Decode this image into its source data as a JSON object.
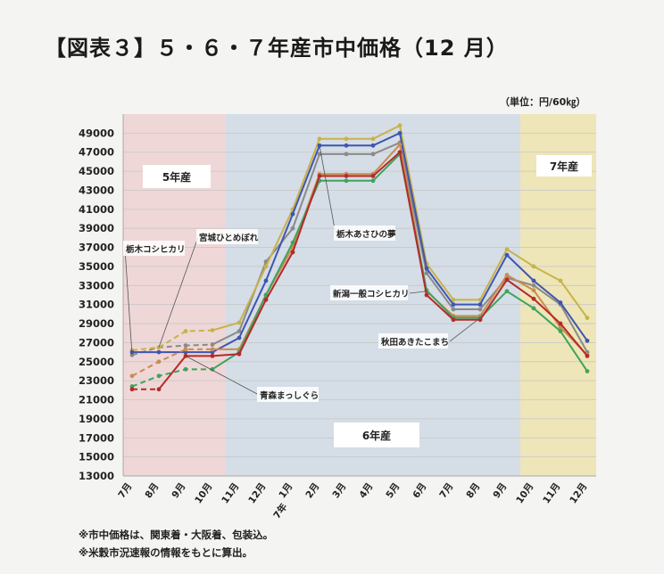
{
  "title": "【図表３】５・６・７年産市中価格（12 月）",
  "unit": "（単位：円/60㎏）",
  "notes": [
    "※市中価格は、関東着・大阪着、包装込。",
    "※米穀市況速報の情報をもとに算出。"
  ],
  "colors": {
    "bg5": "#efd7d7",
    "bg6": "#d5dde6",
    "bg7": "#eee6b8",
    "grid": "#c7c7c7"
  },
  "chart_data": {
    "type": "line",
    "ylim": [
      13000,
      51000
    ],
    "yticks": [
      13000,
      15000,
      17000,
      19000,
      21000,
      23000,
      25000,
      27000,
      29000,
      31000,
      33000,
      35000,
      37000,
      39000,
      41000,
      43000,
      45000,
      47000,
      49000
    ],
    "categories": [
      "7月",
      "8月",
      "9月",
      "10月",
      "11月",
      "12月",
      "1月",
      "2月",
      "3月",
      "4月",
      "5月",
      "6月",
      "7月",
      "8月",
      "9月",
      "10月",
      "11月",
      "12月"
    ],
    "year_label": "7年",
    "regions": [
      {
        "label": "5年産",
        "from": 0,
        "to": 3
      },
      {
        "label": "6年産",
        "from": 4,
        "to": 14
      },
      {
        "label": "7年産",
        "from": 15,
        "to": 17
      }
    ],
    "series": [
      {
        "name": "栃木コシヒカリ",
        "color": "#8a8a8a",
        "values": [
          25700,
          26500,
          26700,
          26800,
          28200,
          35500,
          39000,
          46800,
          46800,
          46800,
          48000,
          34300,
          30500,
          30500,
          33800,
          33000,
          31000,
          26000
        ],
        "dashed_to": 3
      },
      {
        "name": "宮城ひとめぼれ",
        "color": "#c8b24a",
        "values": [
          26200,
          26500,
          28200,
          28300,
          29100,
          35000,
          41000,
          48400,
          48400,
          48400,
          49800,
          35300,
          31500,
          31500,
          36800,
          35000,
          33500,
          29600
        ],
        "dashed_to": 3
      },
      {
        "name": "栃木あさひの夢",
        "color": "#3f55b0",
        "values": [
          26000,
          26000,
          26000,
          26000,
          27500,
          33500,
          40500,
          47700,
          47700,
          47700,
          49000,
          34800,
          31000,
          31000,
          36200,
          33500,
          31200,
          27200
        ],
        "dashed_to": null
      },
      {
        "name": "新潟一般コシヒカリ",
        "color": "#c98c4f",
        "values": [
          23500,
          25000,
          26300,
          26300,
          26300,
          32000,
          37000,
          44700,
          44700,
          44700,
          47800,
          32400,
          29800,
          29800,
          34100,
          32500,
          28600,
          25700
        ],
        "dashed_to": 3
      },
      {
        "name": "秋田あきたこまち",
        "color": "#3fa35c",
        "values": [
          22400,
          23500,
          24200,
          24200,
          26000,
          32000,
          37500,
          44000,
          44000,
          44000,
          46800,
          32500,
          29600,
          29600,
          32400,
          30600,
          28200,
          24000
        ],
        "dashed_to": 3
      },
      {
        "name": "青森まっしぐら",
        "color": "#b52a2a",
        "values": [
          22100,
          22100,
          25600,
          25600,
          25800,
          31500,
          36500,
          44500,
          44500,
          44500,
          47000,
          32000,
          29400,
          29400,
          33600,
          31600,
          29000,
          25600
        ],
        "dashed_to": 1
      }
    ],
    "annotations": [
      {
        "text": "栃木コシヒカリ",
        "series": 0,
        "point": 0
      },
      {
        "text": "宮城ひとめぼれ",
        "series": 1,
        "point": 1
      },
      {
        "text": "栃木あさひの夢",
        "series": 2,
        "point": 7
      },
      {
        "text": "新潟一般コシヒカリ",
        "series": 3,
        "point": 11
      },
      {
        "text": "秋田あきたこまち",
        "series": 4,
        "point": 13
      },
      {
        "text": "青森まっしぐら",
        "series": 5,
        "point": 2
      }
    ]
  }
}
